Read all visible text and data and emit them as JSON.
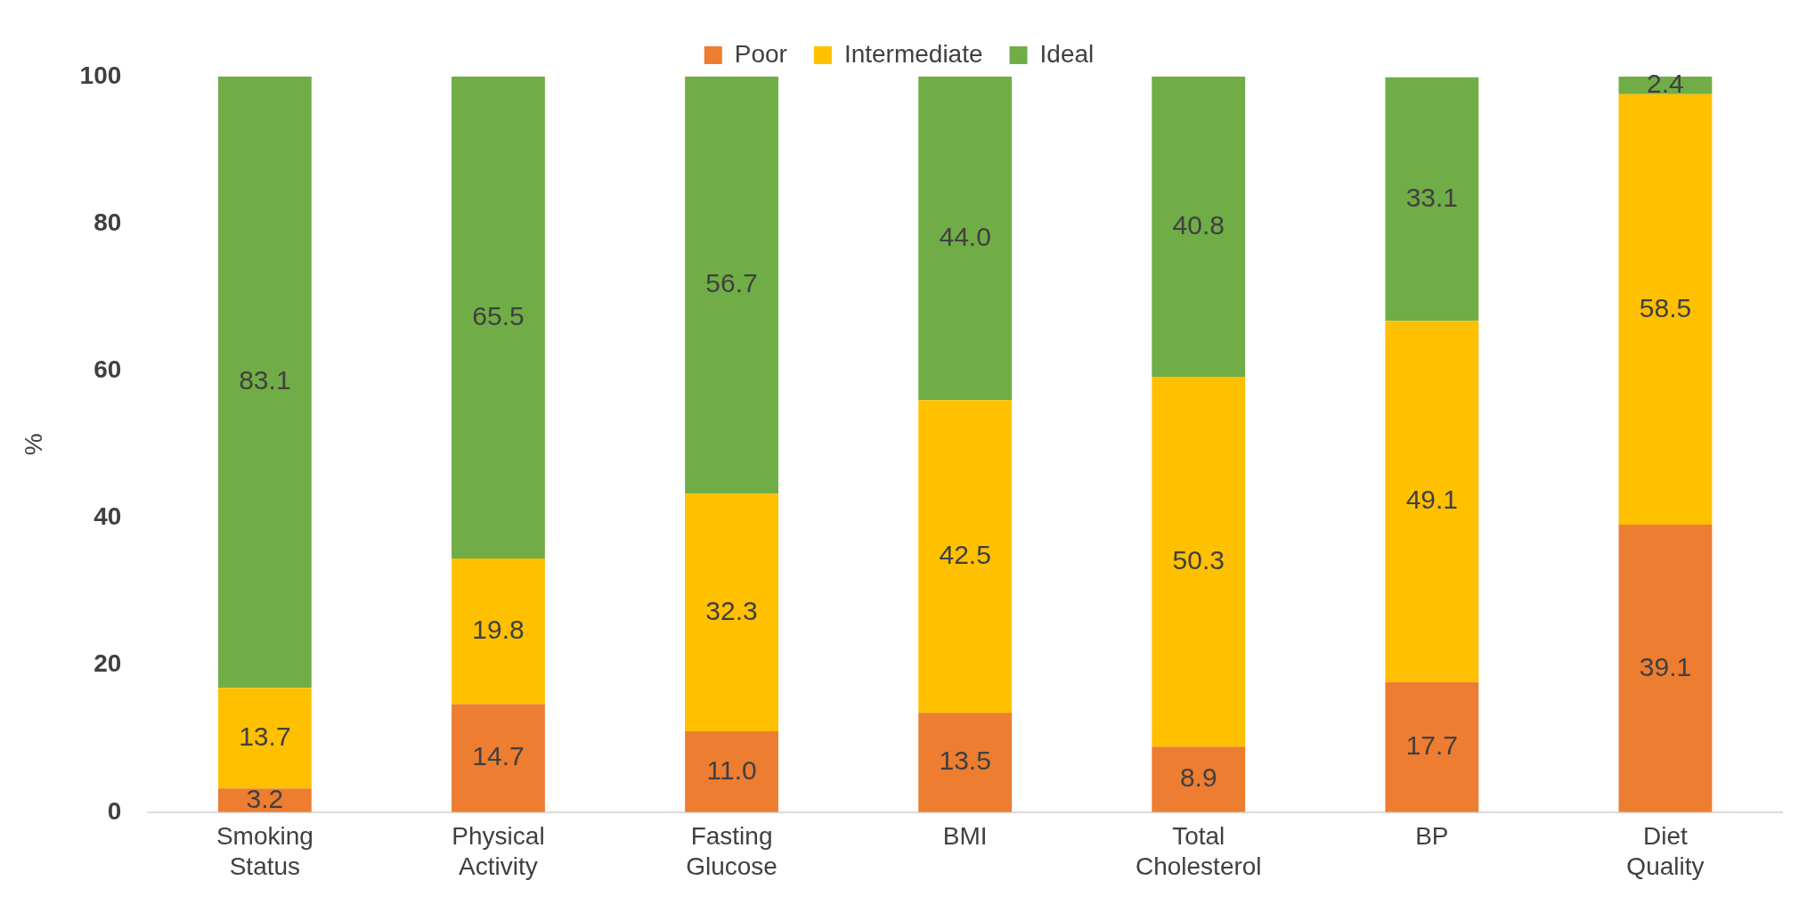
{
  "chart_data": {
    "type": "bar",
    "stacked": true,
    "ylabel": "%",
    "categories": [
      "Smoking Status",
      "Physical Activity",
      "Fasting Glucose",
      "BMI",
      "Total Cholesterol",
      "BP",
      "Diet Quality"
    ],
    "series": [
      {
        "name": "Poor",
        "color": "#ed7d31",
        "values": [
          3.2,
          14.7,
          11.0,
          13.5,
          8.9,
          17.7,
          39.1
        ],
        "value_labels": [
          "3.2",
          "14.7",
          "11.0",
          "13.5",
          "8.9",
          "17.7",
          "39.1"
        ]
      },
      {
        "name": "Intermediate",
        "color": "#ffc000",
        "values": [
          13.7,
          19.8,
          32.3,
          42.5,
          50.3,
          49.1,
          58.5
        ],
        "value_labels": [
          "13.7",
          "19.8",
          "32.3",
          "42.5",
          "50.3",
          "49.1",
          "58.5"
        ]
      },
      {
        "name": "Ideal",
        "color": "#70ad47",
        "values": [
          83.1,
          65.5,
          56.7,
          44.0,
          40.8,
          33.1,
          2.4
        ],
        "value_labels": [
          "83.1",
          "65.5",
          "56.7",
          "44.0",
          "40.8",
          "33.1",
          "2.4"
        ]
      }
    ],
    "ylim": [
      0,
      100
    ],
    "yticks": [
      0,
      20,
      40,
      60,
      80,
      100
    ],
    "grid": false,
    "legend": "top"
  }
}
